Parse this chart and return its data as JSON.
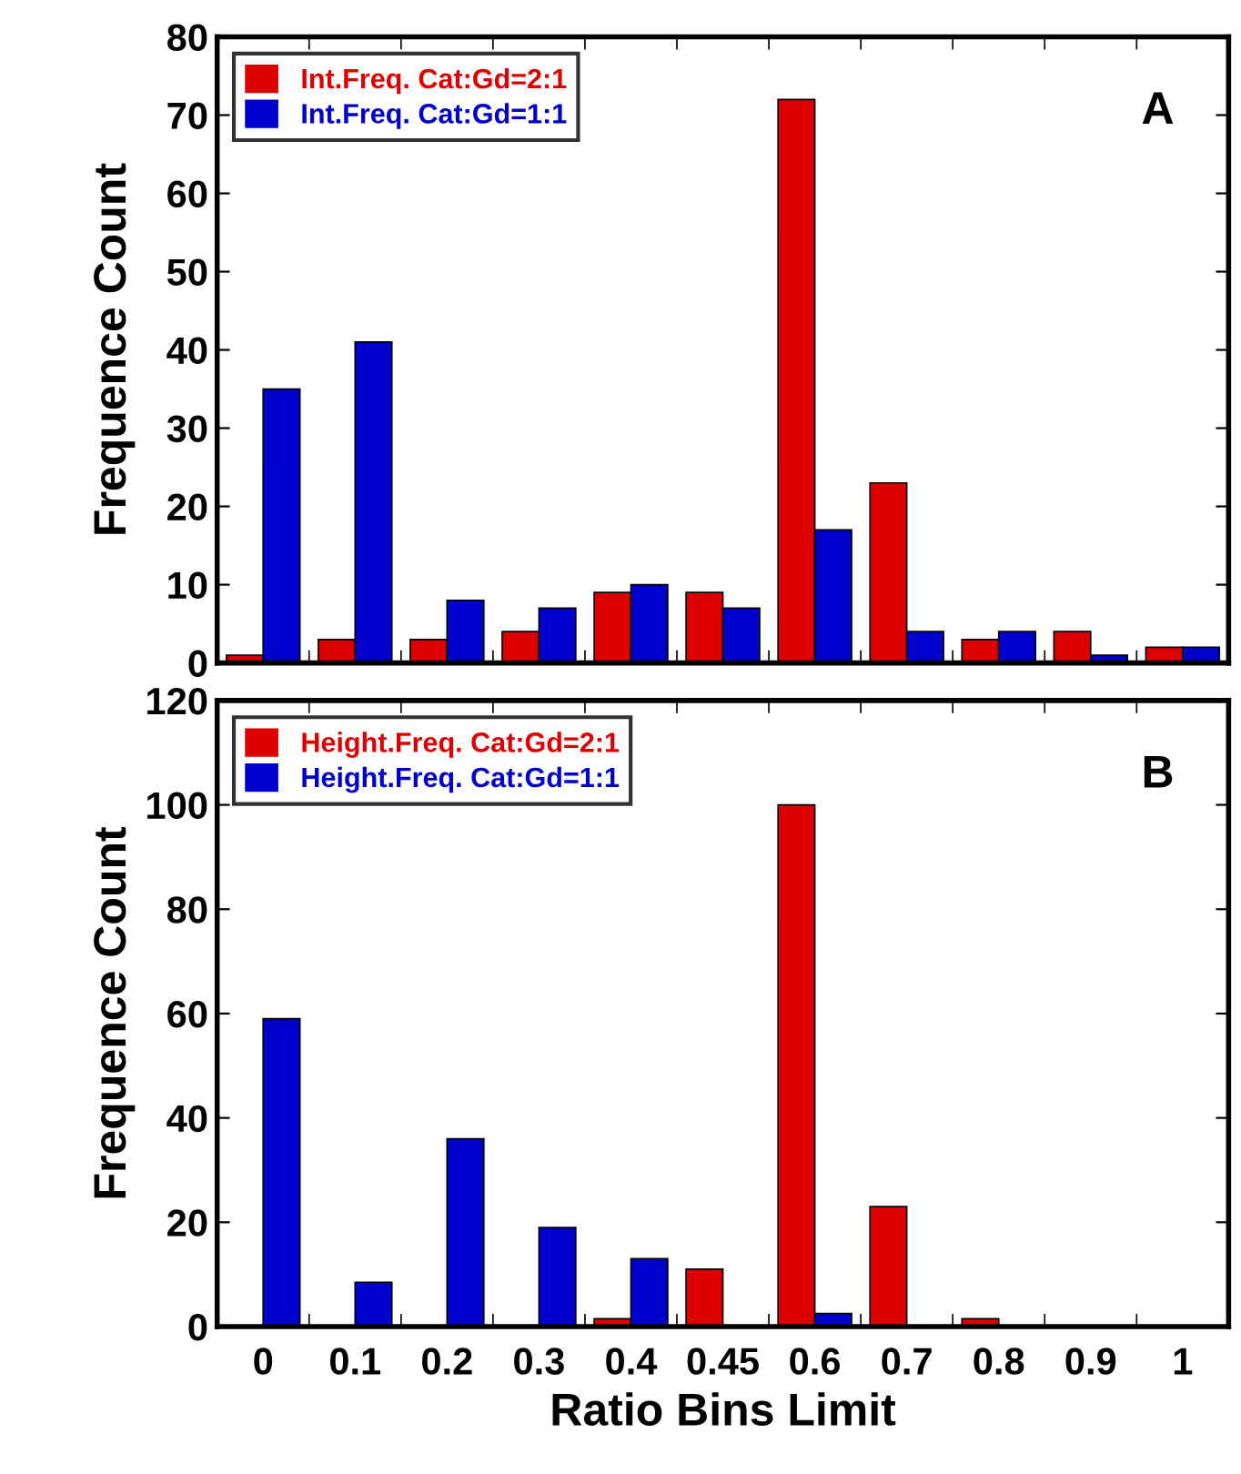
{
  "chart_data": [
    {
      "type": "bar",
      "ylabel": "Frequence Count",
      "categories": [
        "0",
        "0.1",
        "0.2",
        "0.3",
        "0.4",
        "0.45",
        "0.6",
        "0.7",
        "0.8",
        "0.9",
        "1"
      ],
      "tick_labels": "y",
      "ylim": [
        0,
        80
      ],
      "yticks": [
        0,
        10,
        20,
        30,
        40,
        50,
        60,
        70,
        80
      ],
      "legend": "top left",
      "annotations": [
        "A"
      ],
      "series": [
        {
          "name": "Int.Freq. Cat:Gd=2:1",
          "color": "#dd0000",
          "values": [
            1,
            3,
            3,
            4,
            9,
            9,
            72,
            23,
            3,
            4,
            2
          ]
        },
        {
          "name": "Int.Freq. Cat:Gd=1:1",
          "color": "#0000cc",
          "values": [
            35,
            41,
            8,
            7,
            10,
            7,
            17,
            4,
            4,
            1,
            2
          ]
        }
      ]
    },
    {
      "type": "bar",
      "ylabel": "Frequence Count",
      "xlabel": "Ratio Bins Limit",
      "categories": [
        "0",
        "0.1",
        "0.2",
        "0.3",
        "0.4",
        "0.45",
        "0.6",
        "0.7",
        "0.8",
        "0.9",
        "1"
      ],
      "ylim": [
        0,
        120
      ],
      "yticks": [
        0,
        20,
        40,
        60,
        80,
        100,
        120
      ],
      "legend": "top left",
      "annotations": [
        "B"
      ],
      "series": [
        {
          "name": "Height.Freq. Cat:Gd=2:1",
          "color": "#dd0000",
          "values": [
            0,
            0,
            null,
            null,
            1.5,
            11,
            100,
            23,
            1.5,
            0,
            0
          ]
        },
        {
          "name": "Height.Freq. Cat:Gd=1:1",
          "color": "#0000cc",
          "values": [
            59,
            8.5,
            36,
            19,
            13,
            0,
            2.5,
            0,
            null,
            0,
            0
          ]
        }
      ]
    }
  ]
}
